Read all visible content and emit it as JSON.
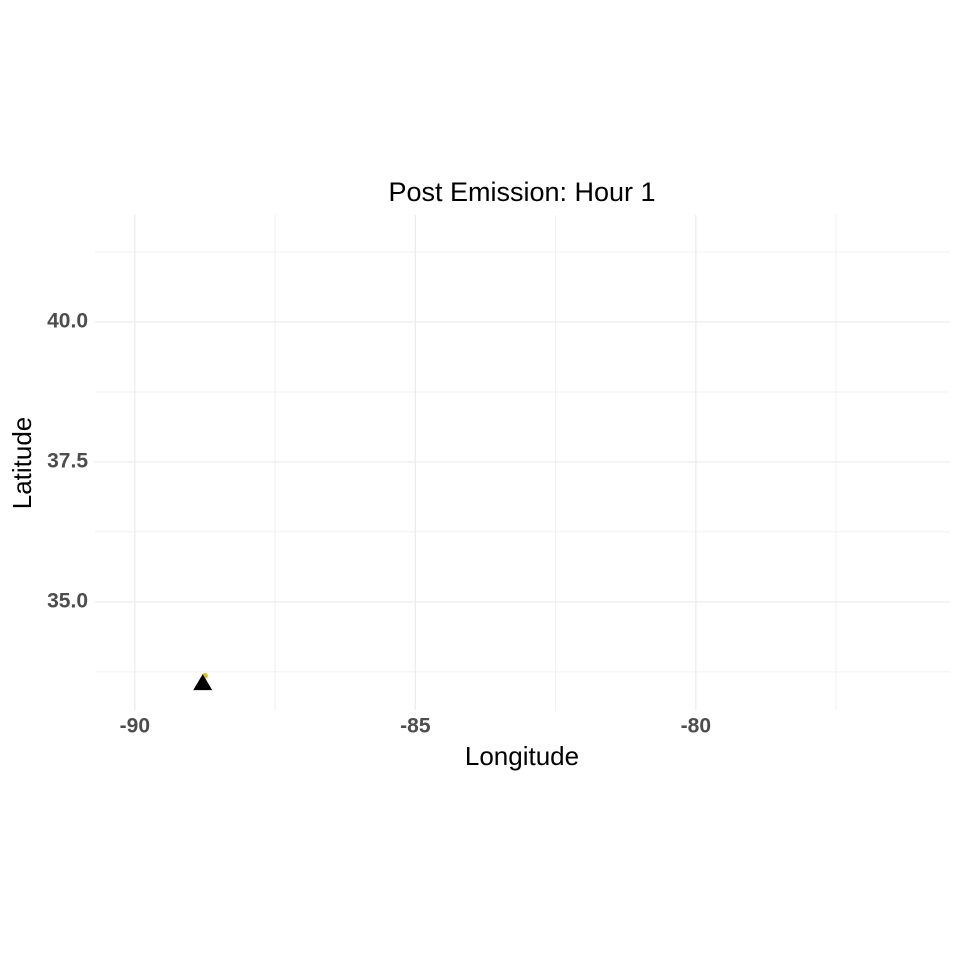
{
  "chart_data": {
    "type": "scatter",
    "title": "Post Emission: Hour 1",
    "x_label": "Longitude",
    "y_label": "Latitude",
    "xlim": [
      -90.71,
      -75.47
    ],
    "ylim": [
      33.07,
      41.91
    ],
    "xticks": [
      -90,
      -85,
      -80
    ],
    "yticks": [
      {
        "value": 35,
        "label": "35.0"
      },
      37.5,
      {
        "value": 40,
        "label": "40.0"
      }
    ],
    "x_minor_ticks": [
      -87.5,
      -82.5,
      -77.5
    ],
    "y_minor_ticks": [
      33.75,
      36.25,
      38.75,
      41.25
    ],
    "grid": true,
    "series": [
      {
        "shape": "circle",
        "color": "#e3c21a",
        "x": [
          -88.75
        ],
        "values": [
          33.68
        ]
      },
      {
        "shape": "triangle",
        "color": "#000000",
        "x": [
          -88.79
        ],
        "values": [
          33.55
        ]
      }
    ]
  }
}
